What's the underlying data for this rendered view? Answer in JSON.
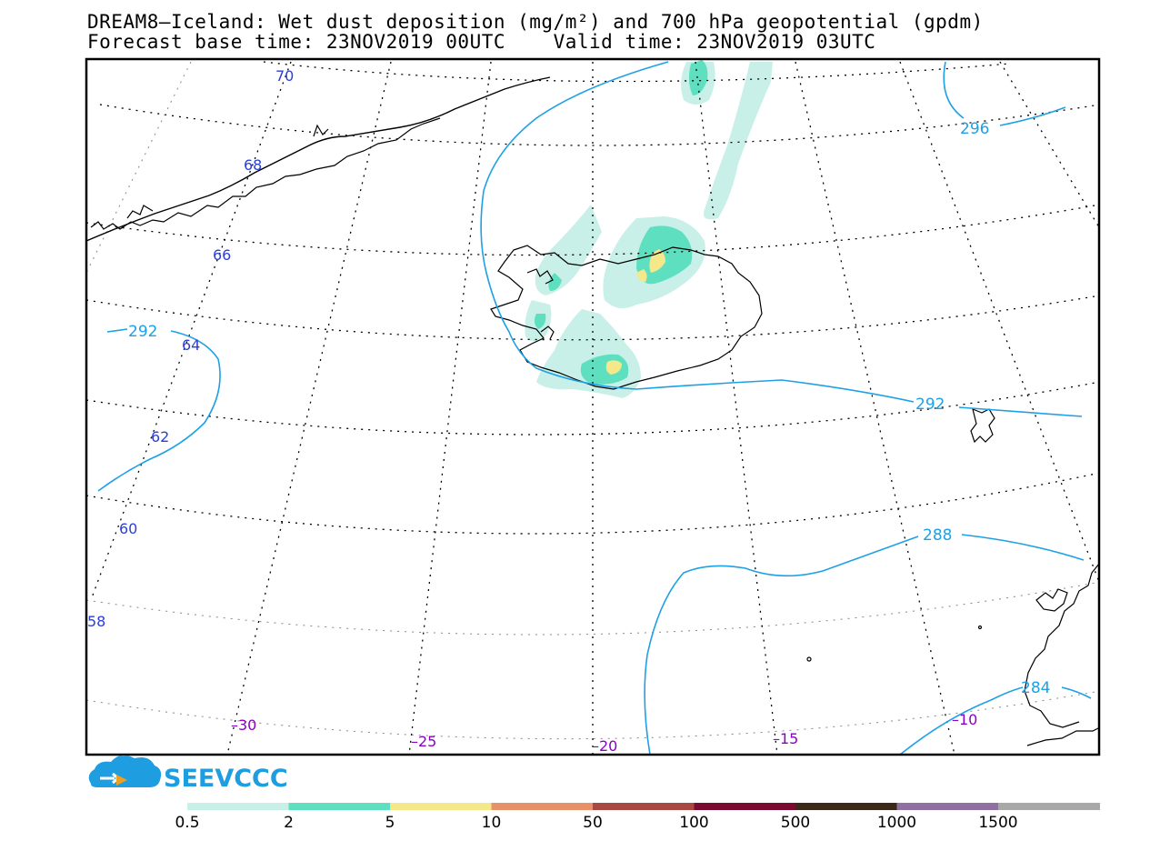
{
  "title": {
    "line1": "DREAM8–Iceland: Wet dust deposition (mg/m²) and 700 hPa geopotential (gpdm)",
    "line2": "Forecast base time: 23NOV2019 00UTC    Valid time: 23NOV2019 03UTC"
  },
  "logo": {
    "text": "SEEVCCC",
    "icon": "cloud-arrow-icon",
    "color": "#1e9ee0"
  },
  "latitude_labels": [
    "70",
    "68",
    "66",
    "64",
    "62",
    "60",
    "58"
  ],
  "longitude_labels": [
    "–30",
    "–25",
    "–20",
    "–15",
    "–10"
  ],
  "contour_labels": [
    "296",
    "292",
    "292",
    "288",
    "284"
  ],
  "legend": {
    "labels": [
      "0.5",
      "2",
      "5",
      "10",
      "50",
      "100",
      "500",
      "1000",
      "1500"
    ],
    "colors": [
      "#c8f0e8",
      "#5ee0c0",
      "#f5e88a",
      "#e8906a",
      "#a84840",
      "#7a0a30",
      "#3a2818",
      "#9070a0",
      "#a8a8a8"
    ]
  },
  "colors": {
    "contour": "#1ea0e6",
    "lat_label": "#2a3fd8",
    "lon_label": "#8a00c8",
    "coast": "#000000"
  }
}
